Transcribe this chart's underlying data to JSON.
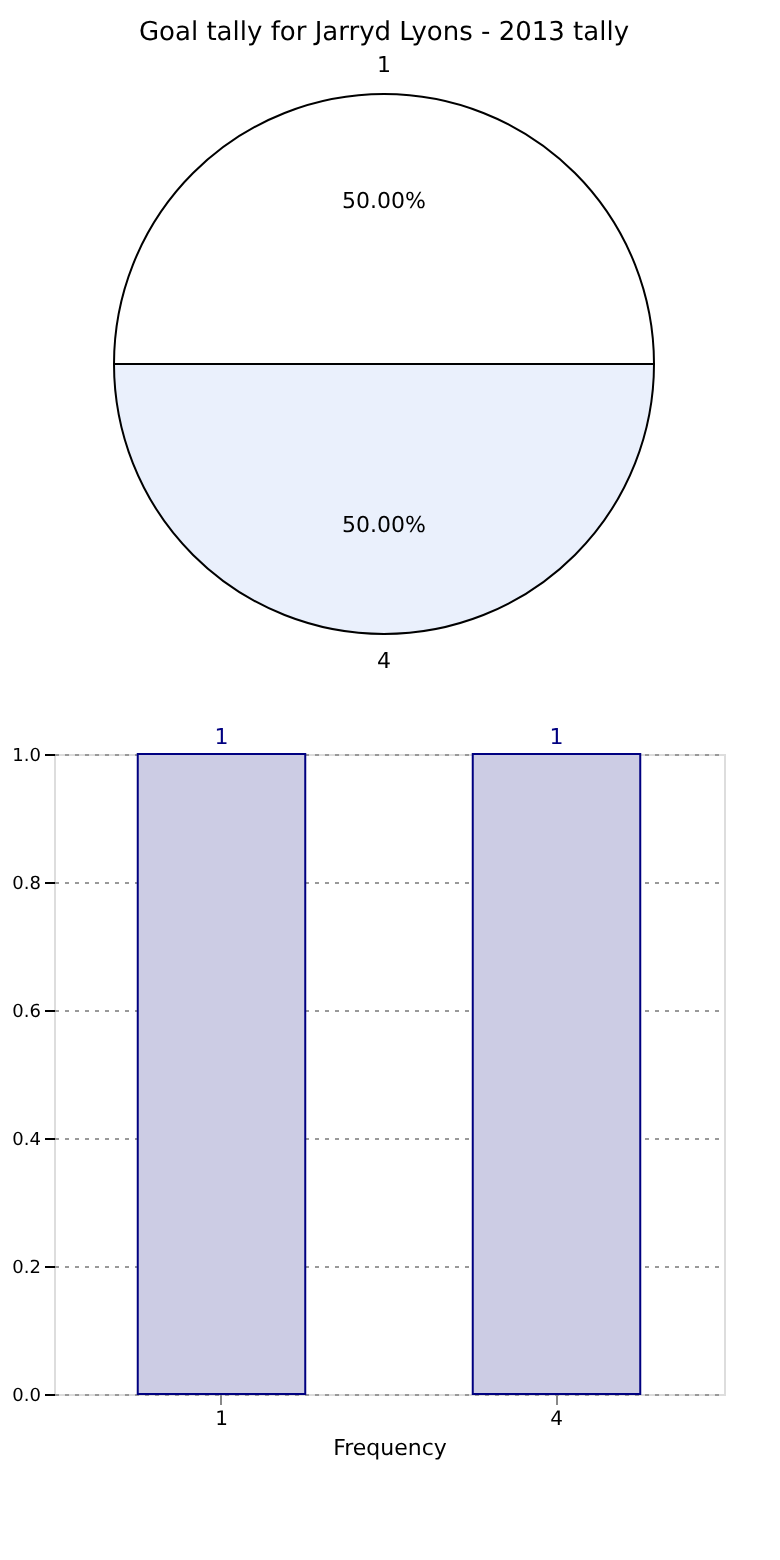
{
  "chart_data": [
    {
      "type": "pie",
      "title": "Goal tally for Jarryd Lyons - 2013 tally",
      "categories": [
        "1",
        "4"
      ],
      "values": [
        50,
        50
      ],
      "colors": [
        "#ffffff",
        "#eaf0fc"
      ],
      "value_labels": [
        "50.00%",
        "50.00%"
      ]
    },
    {
      "type": "bar",
      "categories": [
        "1",
        "4"
      ],
      "values": [
        1,
        1
      ],
      "color": "#cccce4",
      "xlabel": "Frequency",
      "ylim": [
        0,
        1
      ],
      "yticks": [
        {
          "value": 0,
          "label": "0.0"
        },
        {
          "value": 0.2,
          "label": "0.2"
        },
        {
          "value": 0.4,
          "label": "0.4"
        },
        {
          "value": 0.6,
          "label": "0.6"
        },
        {
          "value": 0.8,
          "label": "0.8"
        },
        {
          "value": 1,
          "label": "1.0"
        }
      ],
      "grid": true,
      "data_labels": true
    }
  ]
}
